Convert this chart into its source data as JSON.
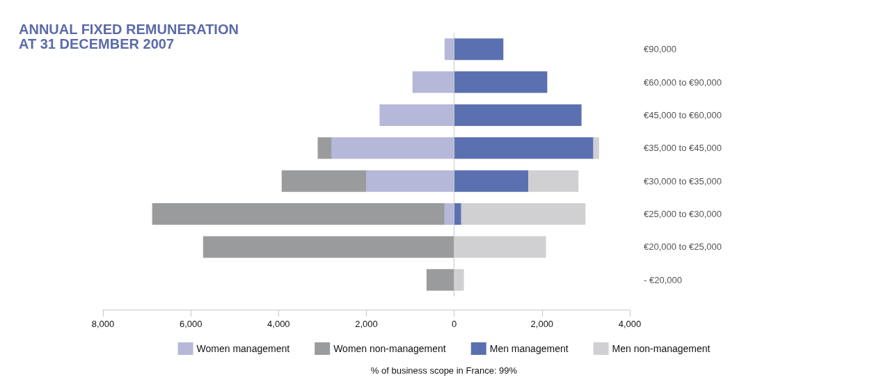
{
  "chart_data": {
    "type": "bar",
    "orientation": "horizontal",
    "stacked": true,
    "title": "ANNUAL FIXED REMUNERATION\nAT 31 DECEMBER 2007",
    "categories": [
      "€90,000",
      "€60,000 to €90,000",
      "€45,000 to €60,000",
      "€35,000 to €45,000",
      "€30,000 to €35,000",
      "€25,000 to €30,000",
      "€20,000 to €25,000",
      "- €20,000"
    ],
    "series": [
      {
        "name": "Women management",
        "color": "#b5b8d9",
        "values": [
          -220,
          -950,
          -1700,
          -2790,
          -2000,
          -220,
          null,
          null
        ]
      },
      {
        "name": "Women non-management",
        "color": "#9a9b9d",
        "values": [
          null,
          null,
          null,
          -320,
          -1930,
          -6660,
          -5720,
          -630
        ]
      },
      {
        "name": "Men management",
        "color": "#5b70b0",
        "values": [
          1120,
          2120,
          2900,
          3170,
          1690,
          160,
          null,
          null
        ]
      },
      {
        "name": "Men non-management",
        "color": "#d0d0d2",
        "values": [
          null,
          null,
          null,
          130,
          1140,
          2830,
          2090,
          220
        ]
      }
    ],
    "xlim": [
      -8000,
      4000
    ],
    "xticks": [
      {
        "value": -8000,
        "label": "8,000"
      },
      {
        "value": -6000,
        "label": "6,000"
      },
      {
        "value": -4000,
        "label": "4,000"
      },
      {
        "value": -2000,
        "label": "2,000"
      },
      0,
      {
        "value": 2000,
        "label": "2,000"
      },
      {
        "value": 4000,
        "label": "4,000"
      }
    ],
    "ref_lines": [
      {
        "axis": "x",
        "value": 0,
        "color": "#c8c8c8"
      }
    ],
    "grid": false,
    "legend": "bottom",
    "annotations": [
      "% of business scope in France: 99%"
    ]
  }
}
